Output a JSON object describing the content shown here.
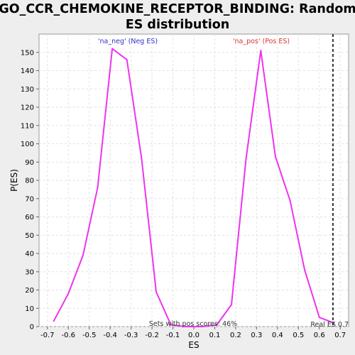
{
  "chart_data": {
    "type": "line",
    "title_line1": "GO_CCR_CHEMOKINE_RECEPTOR_BINDING: Random",
    "title_line2": "ES distribution",
    "xlabel": "ES",
    "ylabel": "P(ES)",
    "xlim": [
      -0.74,
      0.74
    ],
    "ylim": [
      0,
      160
    ],
    "xticks": [
      -0.7,
      -0.6,
      -0.5,
      -0.4,
      -0.3,
      -0.2,
      -0.1,
      0.0,
      0.1,
      0.2,
      0.3,
      0.4,
      0.5,
      0.6,
      0.7
    ],
    "yticks": [
      0,
      10,
      20,
      30,
      40,
      50,
      60,
      70,
      80,
      90,
      100,
      110,
      120,
      130,
      140,
      150
    ],
    "grid": true,
    "line_color": "#ee33ee",
    "series": [
      {
        "x": [
          -0.67,
          -0.6,
          -0.53,
          -0.46,
          -0.39,
          -0.32,
          -0.25,
          -0.18,
          -0.11,
          -0.04,
          0.04,
          0.11,
          0.18,
          0.25,
          0.32,
          0.39,
          0.46,
          0.53,
          0.6,
          0.67
        ],
        "y": [
          3,
          18,
          39,
          76,
          152,
          146,
          92,
          19,
          1,
          0,
          0,
          1,
          12,
          92,
          151,
          93,
          69,
          31,
          5,
          2
        ]
      }
    ],
    "annotations": {
      "neg_label": "'na_neg' (Neg ES)",
      "neg_color": "#3333cc",
      "pos_label": "'na_pos' (Pos ES)",
      "pos_color": "#dd3333",
      "sets_text": "Sets with pos scores: 46%",
      "real_es_text": "Real ES 0.7",
      "real_es_value": 0.665
    }
  }
}
